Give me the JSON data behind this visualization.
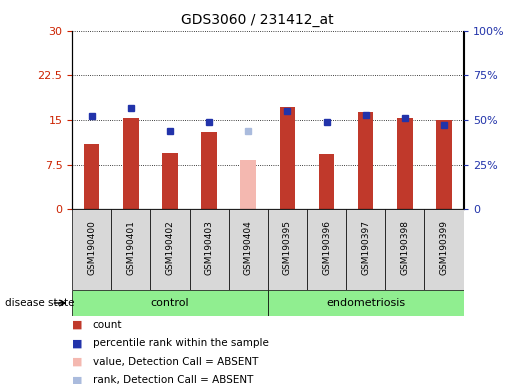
{
  "title": "GDS3060 / 231412_at",
  "samples": [
    "GSM190400",
    "GSM190401",
    "GSM190402",
    "GSM190403",
    "GSM190404",
    "GSM190395",
    "GSM190396",
    "GSM190397",
    "GSM190398",
    "GSM190399"
  ],
  "counts": [
    11.0,
    15.3,
    9.5,
    13.0,
    null,
    17.2,
    9.3,
    16.3,
    15.3,
    15.0
  ],
  "absent_counts": [
    null,
    null,
    null,
    null,
    8.2,
    null,
    null,
    null,
    null,
    null
  ],
  "percentile_ranks": [
    52,
    57,
    44,
    49,
    null,
    55,
    49,
    53,
    51,
    47
  ],
  "absent_ranks": [
    null,
    null,
    null,
    null,
    44,
    null,
    null,
    null,
    null,
    null
  ],
  "ylim_left": [
    0,
    30
  ],
  "ylim_right": [
    0,
    100
  ],
  "yticks_left": [
    0,
    7.5,
    15,
    22.5,
    30
  ],
  "yticks_right": [
    0,
    25,
    50,
    75,
    100
  ],
  "ytick_labels_left": [
    "0",
    "7.5",
    "15",
    "22.5",
    "30"
  ],
  "ytick_labels_right": [
    "0",
    "25%",
    "50%",
    "75%",
    "100%"
  ],
  "groups": {
    "control": [
      0,
      1,
      2,
      3,
      4
    ],
    "endometriosis": [
      5,
      6,
      7,
      8,
      9
    ]
  },
  "bar_color_present": "#C0392B",
  "bar_color_absent": "#F4B8B0",
  "dot_color_present": "#2233AA",
  "dot_color_absent": "#AABBDD",
  "legend": [
    {
      "label": "count",
      "color": "#C0392B"
    },
    {
      "label": "percentile rank within the sample",
      "color": "#2233AA"
    },
    {
      "label": "value, Detection Call = ABSENT",
      "color": "#F4B8B0"
    },
    {
      "label": "rank, Detection Call = ABSENT",
      "color": "#AABBDD"
    }
  ],
  "bar_width": 0.4,
  "left_color": "#CC2200",
  "right_color": "#2233AA"
}
